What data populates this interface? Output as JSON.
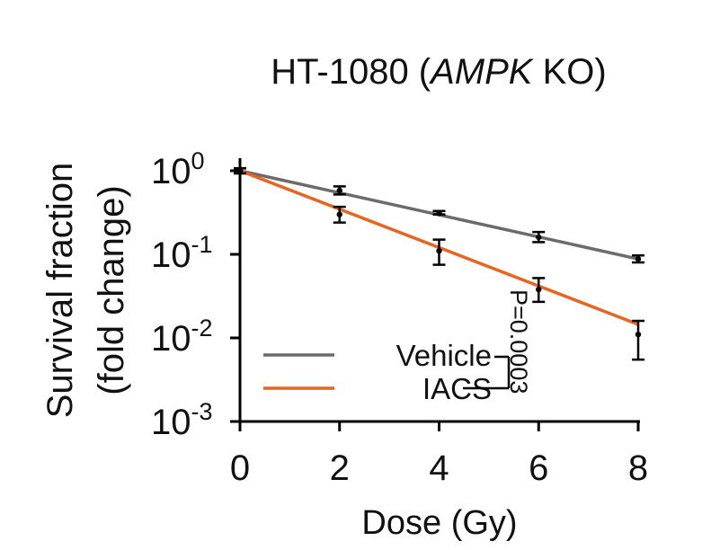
{
  "chart_data": {
    "type": "scatter",
    "title_main": "HT-1080 (",
    "title_italic": "AMPK",
    "title_end": " KO)",
    "ylabel_line1": "Survival fraction",
    "ylabel_line2": "(fold change)",
    "xlabel": "Dose (Gy)",
    "y_scale": "log",
    "ylim": [
      0.001,
      1
    ],
    "xlim": [
      0,
      8
    ],
    "x_ticks": [
      {
        "value": 0,
        "label": "0"
      },
      {
        "value": 2,
        "label": "2"
      },
      {
        "value": 4,
        "label": "4"
      },
      {
        "value": 6,
        "label": "6"
      },
      {
        "value": 8,
        "label": "8"
      }
    ],
    "y_ticks": [
      {
        "value": 1,
        "base": "10",
        "exp": "0"
      },
      {
        "value": 0.1,
        "base": "10",
        "exp": "-1"
      },
      {
        "value": 0.01,
        "base": "10",
        "exp": "-2"
      },
      {
        "value": 0.001,
        "base": "10",
        "exp": "-3"
      }
    ],
    "series": [
      {
        "name": "Vehicle",
        "color": "#6b6b6b",
        "x": [
          0,
          2,
          4,
          6,
          8
        ],
        "y": [
          1.0,
          0.58,
          0.31,
          0.16,
          0.088
        ],
        "err_low": [
          0.93,
          0.52,
          0.3,
          0.14,
          0.08
        ],
        "err_high": [
          1.07,
          0.65,
          0.33,
          0.185,
          0.097
        ],
        "fit": [
          [
            0,
            1.0
          ],
          [
            8,
            0.088
          ]
        ]
      },
      {
        "name": "IACS",
        "color": "#e8641f",
        "x": [
          0,
          2,
          4,
          6,
          8
        ],
        "y": [
          1.0,
          0.3,
          0.11,
          0.038,
          0.011
        ],
        "err_low": [
          0.93,
          0.24,
          0.075,
          0.027,
          0.0055
        ],
        "err_high": [
          1.07,
          0.37,
          0.15,
          0.052,
          0.016
        ],
        "fit": [
          [
            0,
            1.0
          ],
          [
            8,
            0.0145
          ]
        ]
      }
    ],
    "legend_position": "bottom-left",
    "annotation": "P=0.0003",
    "grid": false
  }
}
